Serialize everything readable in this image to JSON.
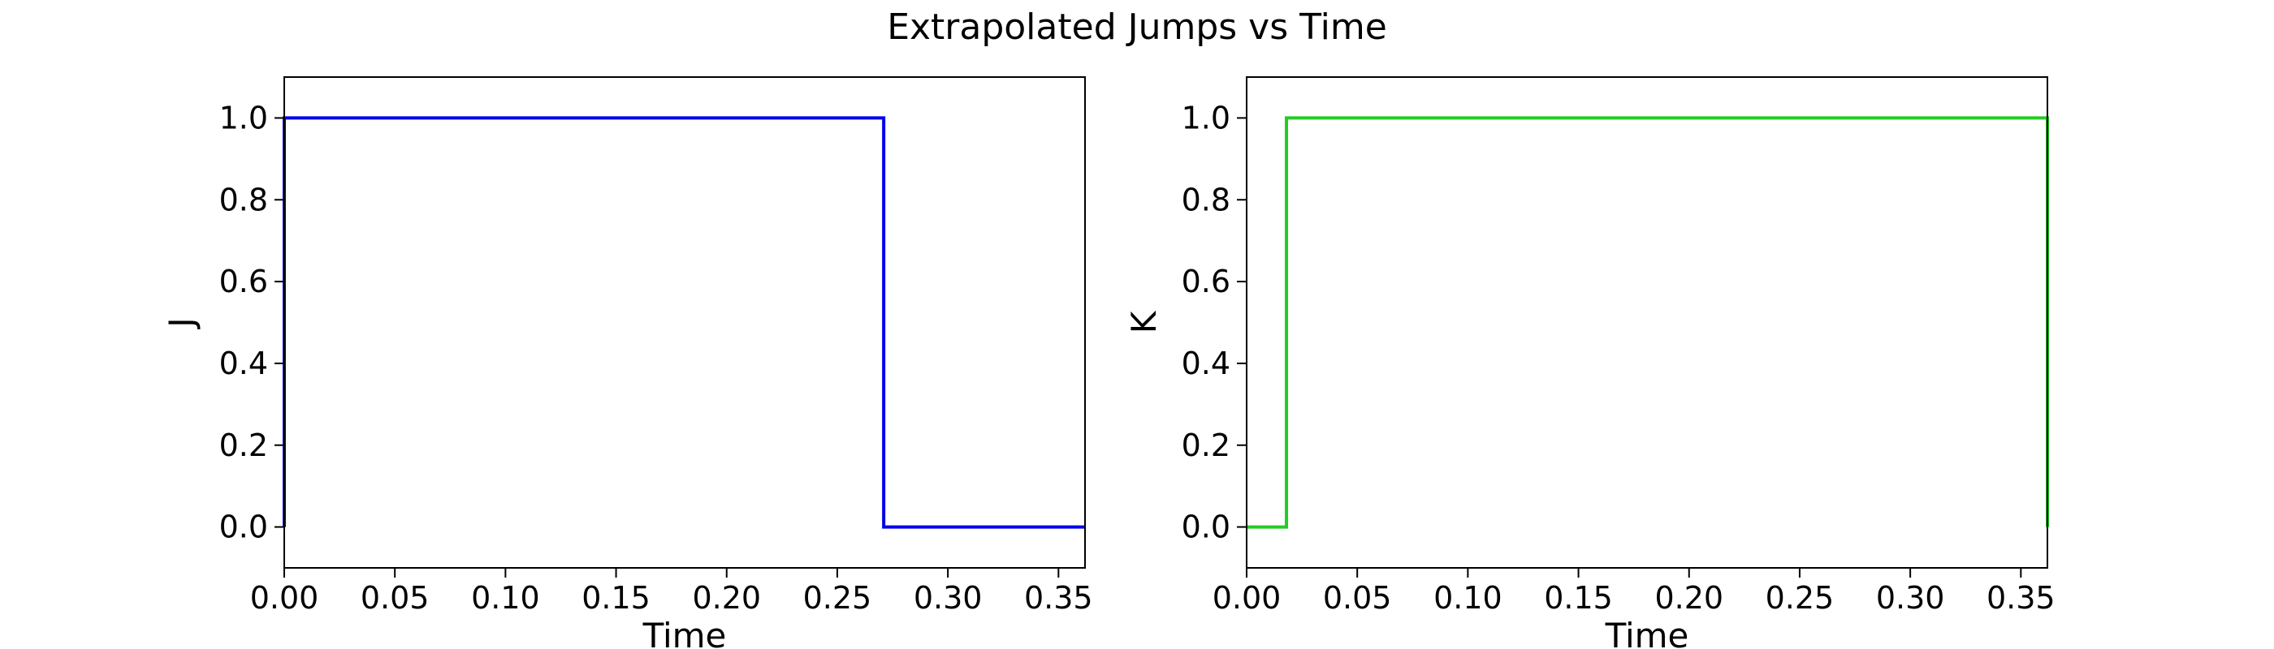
{
  "figure": {
    "title": "Extrapolated Jumps vs Time"
  },
  "chart_data": [
    {
      "type": "line",
      "step": true,
      "title": "",
      "xlabel": "Time",
      "ylabel": "J",
      "xlim": [
        0.0,
        0.362
      ],
      "ylim": [
        -0.1,
        1.1
      ],
      "xticks": [
        "0.00",
        "0.05",
        "0.10",
        "0.15",
        "0.20",
        "0.25",
        "0.30",
        "0.35"
      ],
      "yticks": [
        "0.0",
        "0.2",
        "0.4",
        "0.6",
        "0.8",
        "1.0"
      ],
      "grid": false,
      "legend": "none",
      "series": [
        {
          "color": "#0000ee",
          "x": [
            0.0,
            0.0,
            0.271,
            0.271,
            0.362
          ],
          "y": [
            0.0,
            1.0,
            1.0,
            0.0,
            0.0
          ]
        }
      ]
    },
    {
      "type": "line",
      "step": true,
      "title": "",
      "xlabel": "Time",
      "ylabel": "K",
      "xlim": [
        0.0,
        0.362
      ],
      "ylim": [
        -0.1,
        1.1
      ],
      "xticks": [
        "0.00",
        "0.05",
        "0.10",
        "0.15",
        "0.20",
        "0.25",
        "0.30",
        "0.35"
      ],
      "yticks": [
        "0.0",
        "0.2",
        "0.4",
        "0.6",
        "0.8",
        "1.0"
      ],
      "grid": false,
      "legend": "none",
      "series": [
        {
          "color": "#22cc22",
          "x": [
            0.0,
            0.018,
            0.018,
            0.362,
            0.362
          ],
          "y": [
            0.0,
            0.0,
            1.0,
            1.0,
            0.0
          ]
        }
      ]
    }
  ]
}
